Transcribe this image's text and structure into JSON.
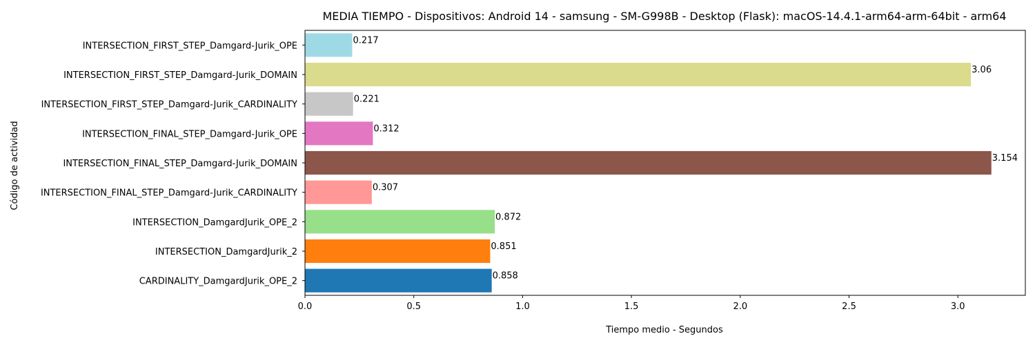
{
  "chart_data": {
    "type": "bar",
    "orientation": "horizontal",
    "title": "MEDIA TIEMPO - Dispositivos: Android 14 - samsung - SM-G998B - Desktop (Flask): macOS-14.4.1-arm64-arm-64bit - arm64",
    "xlabel": "Tiempo medio - Segundos",
    "ylabel": "Código de actividad",
    "xlim": [
      0,
      3.31
    ],
    "xticks": [
      0.0,
      0.5,
      1.0,
      1.5,
      2.0,
      2.5,
      3.0
    ],
    "xtick_labels": [
      "0.0",
      "0.5",
      "1.0",
      "1.5",
      "2.0",
      "2.5",
      "3.0"
    ],
    "grid": false,
    "categories": [
      "CARDINALITY_DamgardJurik_OPE_2",
      "INTERSECTION_DamgardJurik_2",
      "INTERSECTION_DamgardJurik_OPE_2",
      "INTERSECTION_FINAL_STEP_Damgard-Jurik_CARDINALITY",
      "INTERSECTION_FINAL_STEP_Damgard-Jurik_DOMAIN",
      "INTERSECTION_FINAL_STEP_Damgard-Jurik_OPE",
      "INTERSECTION_FIRST_STEP_Damgard-Jurik_CARDINALITY",
      "INTERSECTION_FIRST_STEP_Damgard-Jurik_DOMAIN",
      "INTERSECTION_FIRST_STEP_Damgard-Jurik_OPE"
    ],
    "values": [
      0.858,
      0.851,
      0.872,
      0.307,
      3.154,
      0.312,
      0.221,
      3.06,
      0.217
    ],
    "value_labels": [
      "0.858",
      "0.851",
      "0.872",
      "0.307",
      "3.154",
      "0.312",
      "0.221",
      "3.06",
      "0.217"
    ],
    "colors": [
      "#1f77b4",
      "#ff7f0e",
      "#98df8a",
      "#ff9896",
      "#8c564b",
      "#e377c2",
      "#c7c7c7",
      "#dbdb8d",
      "#9edae5"
    ]
  }
}
